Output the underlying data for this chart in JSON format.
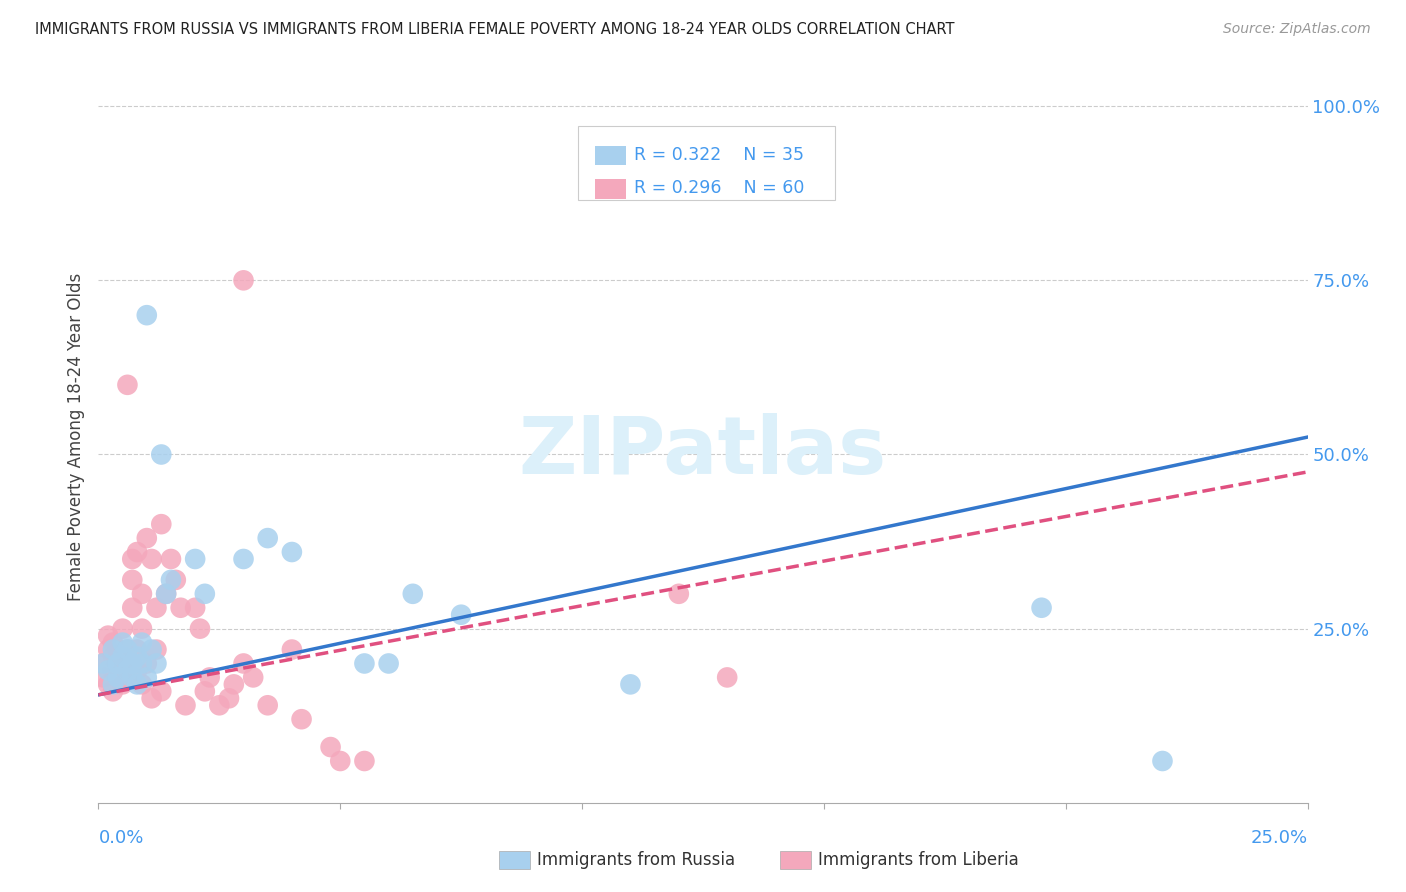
{
  "title": "IMMIGRANTS FROM RUSSIA VS IMMIGRANTS FROM LIBERIA FEMALE POVERTY AMONG 18-24 YEAR OLDS CORRELATION CHART",
  "source": "Source: ZipAtlas.com",
  "ylabel": "Female Poverty Among 18-24 Year Olds",
  "ytick_labels": [
    "100.0%",
    "75.0%",
    "50.0%",
    "25.0%"
  ],
  "ytick_values": [
    1.0,
    0.75,
    0.5,
    0.25
  ],
  "xmin": 0.0,
  "xmax": 0.25,
  "ymin": 0.0,
  "ymax": 1.05,
  "legend_R_russia": "R = 0.322",
  "legend_N_russia": "N = 35",
  "legend_R_liberia": "R = 0.296",
  "legend_N_liberia": "N = 60",
  "legend_label_russia": "Immigrants from Russia",
  "legend_label_liberia": "Immigrants from Liberia",
  "color_russia": "#A8D0EE",
  "color_liberia": "#F4A8BC",
  "color_text_blue": "#4499EE",
  "watermark_text": "ZIPatlas",
  "watermark_color": "#DCF0FA",
  "russia_x": [
    0.001,
    0.002,
    0.003,
    0.003,
    0.004,
    0.004,
    0.005,
    0.005,
    0.006,
    0.006,
    0.007,
    0.007,
    0.008,
    0.008,
    0.009,
    0.009,
    0.01,
    0.01,
    0.011,
    0.012,
    0.013,
    0.014,
    0.015,
    0.02,
    0.022,
    0.03,
    0.035,
    0.04,
    0.055,
    0.06,
    0.065,
    0.075,
    0.11,
    0.195,
    0.22
  ],
  "russia_y": [
    0.2,
    0.19,
    0.17,
    0.22,
    0.2,
    0.18,
    0.23,
    0.21,
    0.19,
    0.22,
    0.2,
    0.18,
    0.21,
    0.17,
    0.2,
    0.23,
    0.18,
    0.7,
    0.22,
    0.2,
    0.5,
    0.3,
    0.32,
    0.35,
    0.3,
    0.35,
    0.38,
    0.36,
    0.2,
    0.2,
    0.3,
    0.27,
    0.17,
    0.28,
    0.06
  ],
  "liberia_x": [
    0.001,
    0.001,
    0.002,
    0.002,
    0.002,
    0.003,
    0.003,
    0.003,
    0.003,
    0.004,
    0.004,
    0.004,
    0.005,
    0.005,
    0.005,
    0.005,
    0.006,
    0.006,
    0.006,
    0.006,
    0.007,
    0.007,
    0.007,
    0.008,
    0.008,
    0.008,
    0.009,
    0.009,
    0.009,
    0.01,
    0.01,
    0.011,
    0.011,
    0.012,
    0.012,
    0.013,
    0.013,
    0.014,
    0.015,
    0.016,
    0.017,
    0.018,
    0.02,
    0.021,
    0.022,
    0.023,
    0.025,
    0.027,
    0.028,
    0.03,
    0.03,
    0.032,
    0.035,
    0.04,
    0.042,
    0.048,
    0.05,
    0.055,
    0.12,
    0.13
  ],
  "liberia_y": [
    0.2,
    0.18,
    0.22,
    0.17,
    0.24,
    0.19,
    0.21,
    0.16,
    0.23,
    0.2,
    0.18,
    0.22,
    0.17,
    0.25,
    0.19,
    0.21,
    0.6,
    0.22,
    0.18,
    0.2,
    0.32,
    0.35,
    0.28,
    0.36,
    0.22,
    0.19,
    0.3,
    0.25,
    0.17,
    0.38,
    0.2,
    0.35,
    0.15,
    0.28,
    0.22,
    0.4,
    0.16,
    0.3,
    0.35,
    0.32,
    0.28,
    0.14,
    0.28,
    0.25,
    0.16,
    0.18,
    0.14,
    0.15,
    0.17,
    0.2,
    0.75,
    0.18,
    0.14,
    0.22,
    0.12,
    0.08,
    0.06,
    0.06,
    0.3,
    0.18
  ],
  "trendline_russia_x0": 0.0,
  "trendline_russia_y0": 0.155,
  "trendline_russia_x1": 0.25,
  "trendline_russia_y1": 0.525,
  "trendline_liberia_x0": 0.0,
  "trendline_liberia_y0": 0.155,
  "trendline_liberia_x1": 0.25,
  "trendline_liberia_y1": 0.475
}
